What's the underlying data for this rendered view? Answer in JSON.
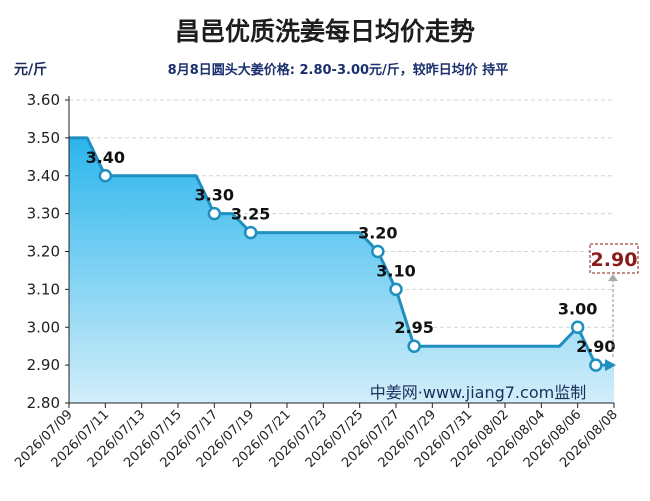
{
  "chart_data": {
    "type": "area",
    "title": "昌邑优质洗姜每日均价走势",
    "subtitle": "8月8日圆头大姜价格: 2.80-3.00元/斤，较昨日均价 持平",
    "ylabel": "元/斤",
    "watermark": "中姜网·www.jiang7.com监制",
    "ylim": [
      2.8,
      3.6
    ],
    "yticks": [
      "2.80",
      "2.90",
      "3.00",
      "3.10",
      "3.20",
      "3.30",
      "3.40",
      "3.50",
      "3.60"
    ],
    "xticks": [
      "2026/07/09",
      "2026/07/11",
      "2026/07/13",
      "2026/07/15",
      "2026/07/17",
      "2026/07/19",
      "2026/07/21",
      "2026/07/23",
      "2026/07/25",
      "2026/07/27",
      "2026/07/29",
      "2026/07/31",
      "2026/08/02",
      "2026/08/04",
      "2026/08/06",
      "2026/08/08"
    ],
    "series": [
      {
        "points": [
          {
            "x": "2026/07/09",
            "y": 3.5
          },
          {
            "x": "2026/07/10",
            "y": 3.5
          },
          {
            "x": "2026/07/11",
            "y": 3.4,
            "label": "3.40"
          },
          {
            "x": "2026/07/12",
            "y": 3.4
          },
          {
            "x": "2026/07/13",
            "y": 3.4
          },
          {
            "x": "2026/07/14",
            "y": 3.4
          },
          {
            "x": "2026/07/15",
            "y": 3.4
          },
          {
            "x": "2026/07/16",
            "y": 3.4
          },
          {
            "x": "2026/07/17",
            "y": 3.3,
            "label": "3.30"
          },
          {
            "x": "2026/07/18",
            "y": 3.3
          },
          {
            "x": "2026/07/19",
            "y": 3.25,
            "label": "3.25"
          },
          {
            "x": "2026/07/20",
            "y": 3.25
          },
          {
            "x": "2026/07/21",
            "y": 3.25
          },
          {
            "x": "2026/07/22",
            "y": 3.25
          },
          {
            "x": "2026/07/23",
            "y": 3.25
          },
          {
            "x": "2026/07/24",
            "y": 3.25
          },
          {
            "x": "2026/07/25",
            "y": 3.25
          },
          {
            "x": "2026/07/26",
            "y": 3.2,
            "label": "3.20"
          },
          {
            "x": "2026/07/27",
            "y": 3.1,
            "label": "3.10"
          },
          {
            "x": "2026/07/28",
            "y": 2.95,
            "label": "2.95"
          },
          {
            "x": "2026/07/29",
            "y": 2.95
          },
          {
            "x": "2026/07/30",
            "y": 2.95
          },
          {
            "x": "2026/07/31",
            "y": 2.95
          },
          {
            "x": "2026/08/01",
            "y": 2.95
          },
          {
            "x": "2026/08/02",
            "y": 2.95
          },
          {
            "x": "2026/08/03",
            "y": 2.95
          },
          {
            "x": "2026/08/04",
            "y": 2.95
          },
          {
            "x": "2026/08/05",
            "y": 2.95
          },
          {
            "x": "2026/08/06",
            "y": 3.0,
            "label": "3.00"
          },
          {
            "x": "2026/08/07",
            "y": 2.9,
            "label": "2.90"
          },
          {
            "x": "2026/08/08",
            "y": 2.9
          }
        ]
      }
    ],
    "latest_value": "2.90",
    "grid": true,
    "colors": {
      "line": "#1f8fc0",
      "fill_top": "#2bb5ec",
      "fill_bottom": "#d2eefa",
      "latest_box": "#8b1a1a"
    }
  }
}
